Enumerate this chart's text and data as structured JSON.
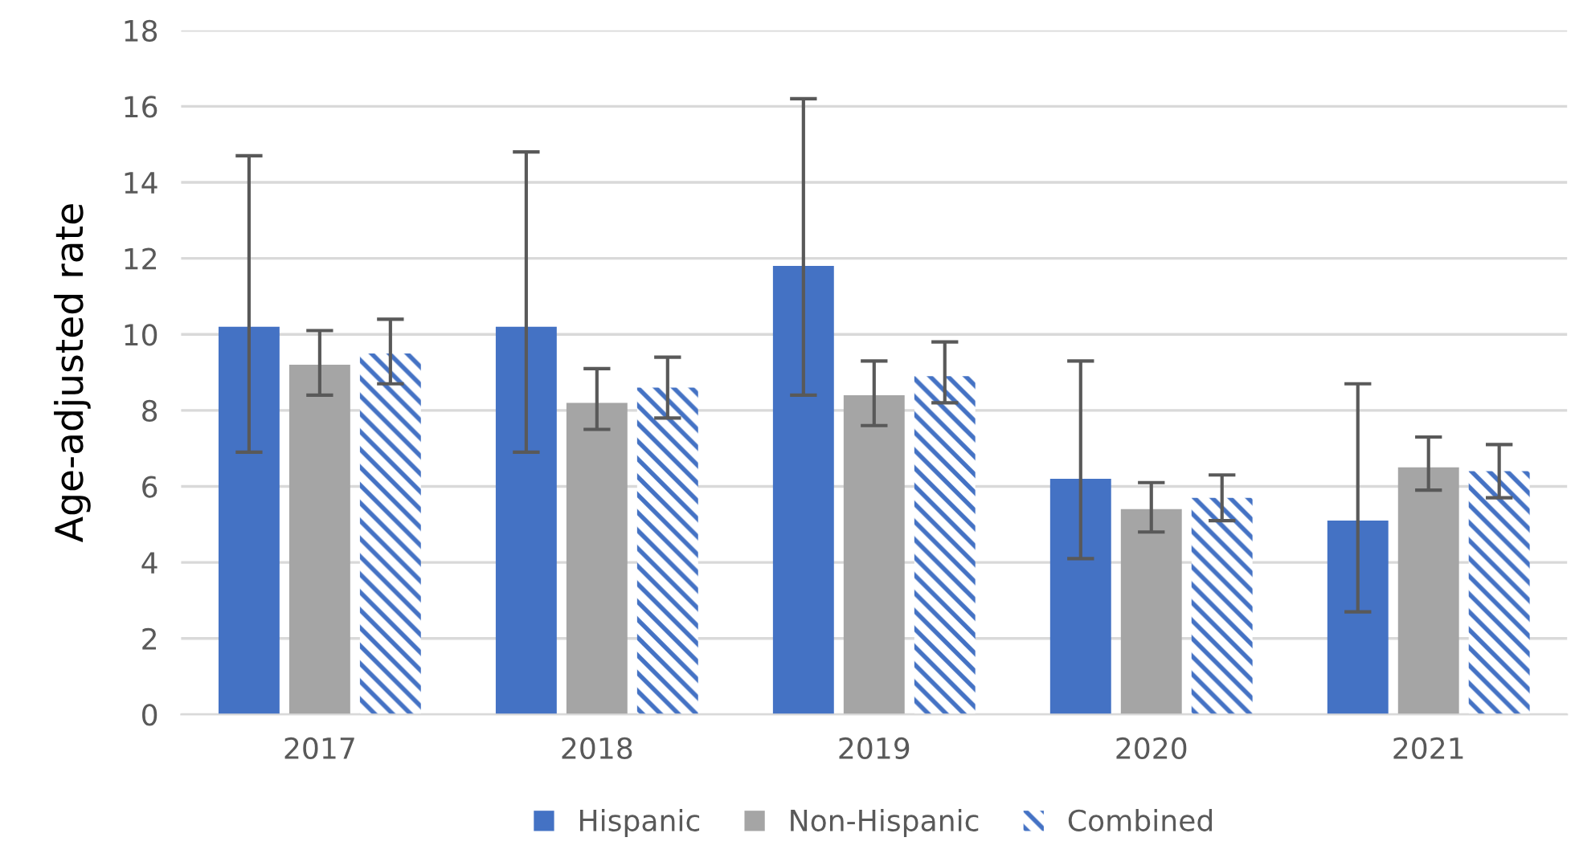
{
  "chart_data": {
    "type": "bar",
    "ylabel": "Age-adjusted rate",
    "categories": [
      "2017",
      "2018",
      "2019",
      "2020",
      "2021"
    ],
    "series": [
      {
        "name": "Hispanic",
        "color": "#4472c4",
        "values": [
          10.2,
          10.2,
          11.8,
          6.2,
          5.1
        ],
        "errors": [
          [
            6.9,
            14.7
          ],
          [
            6.9,
            14.8
          ],
          [
            8.4,
            16.2
          ],
          [
            4.1,
            9.3
          ],
          [
            2.7,
            8.7
          ]
        ]
      },
      {
        "name": "Non-Hispanic",
        "color": "#a5a5a5",
        "values": [
          9.2,
          8.2,
          8.4,
          5.4,
          6.5
        ],
        "errors": [
          [
            8.4,
            10.1
          ],
          [
            7.5,
            9.1
          ],
          [
            7.6,
            9.3
          ],
          [
            4.8,
            6.1
          ],
          [
            5.9,
            7.3
          ]
        ]
      },
      {
        "name": "Combined",
        "color": "#4472c4",
        "values": [
          9.5,
          8.6,
          8.9,
          5.7,
          6.4
        ],
        "errors": [
          [
            8.7,
            10.4
          ],
          [
            7.8,
            9.4
          ],
          [
            8.2,
            9.8
          ],
          [
            5.1,
            6.3
          ],
          [
            5.7,
            7.1
          ]
        ]
      }
    ],
    "ylim": [
      0,
      18
    ],
    "yticks": [
      0,
      2,
      4,
      6,
      8,
      10,
      12,
      14,
      16,
      18
    ],
    "grid": "y",
    "legend": "bottom"
  }
}
